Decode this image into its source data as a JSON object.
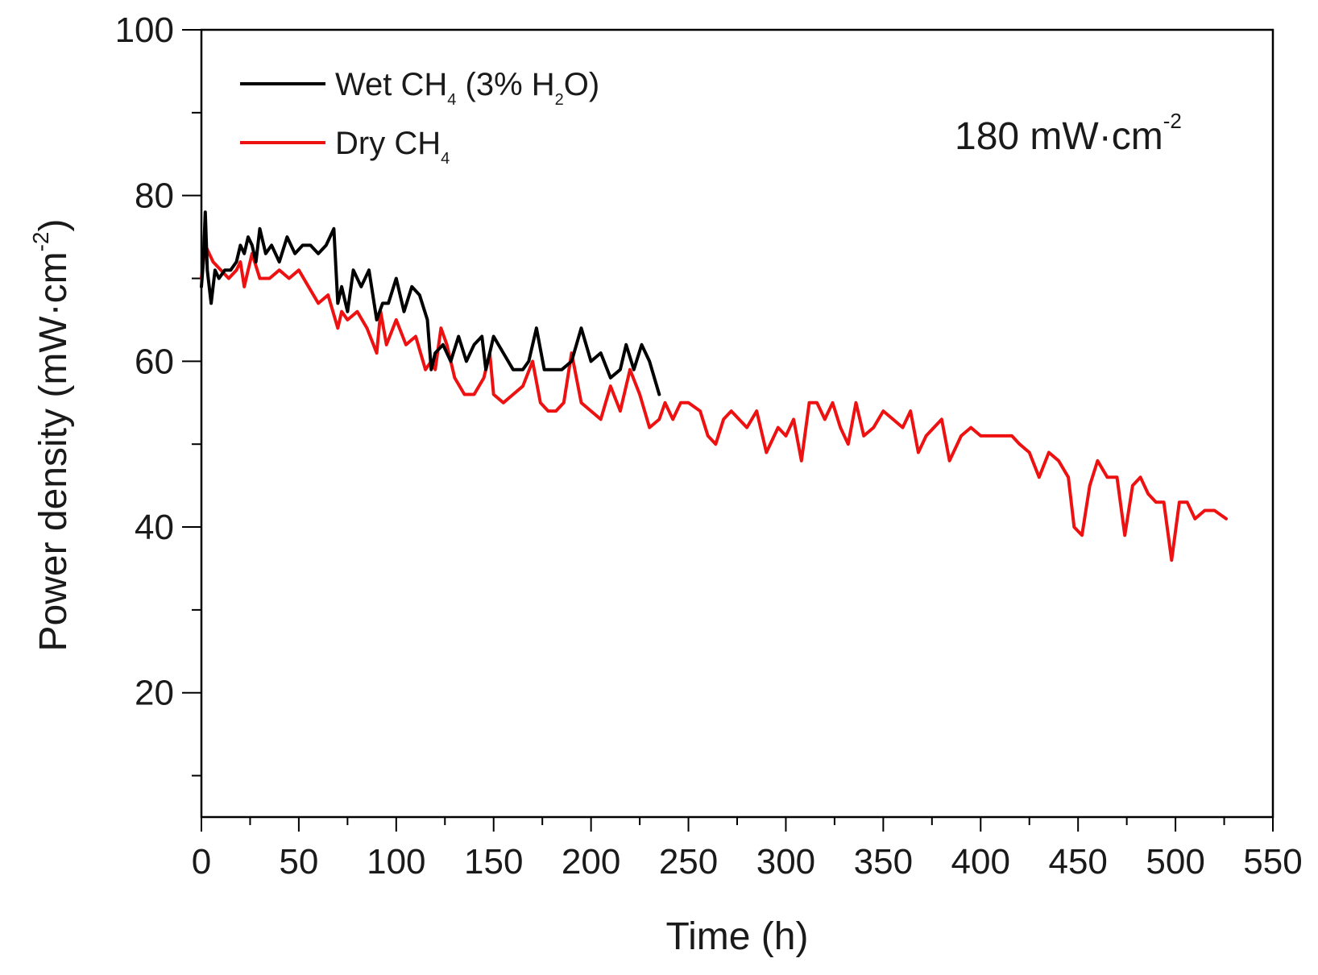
{
  "chart_data": {
    "type": "line",
    "title": "",
    "xlabel": "Time (h)",
    "ylabel": {
      "prefix": "Power density (mW·cm",
      "sup": "-2",
      "suffix": ")"
    },
    "xlim": [
      0,
      550
    ],
    "ylim": [
      5,
      100
    ],
    "x_ticks": [
      "0",
      "50",
      "100",
      "150",
      "200",
      "250",
      "300",
      "350",
      "400",
      "450",
      "500",
      "550"
    ],
    "x_tick_values": [
      0,
      50,
      100,
      150,
      200,
      250,
      300,
      350,
      400,
      450,
      500,
      550
    ],
    "x_minor_step": 25,
    "y_ticks": [
      "20",
      "40",
      "60",
      "80",
      "100"
    ],
    "y_tick_values": [
      20,
      40,
      60,
      80,
      100
    ],
    "y_minor_step": 10,
    "grid": false,
    "legend_position": "top-left",
    "annotation": {
      "text": "180 mW·cm",
      "sup": "-2"
    },
    "series": [
      {
        "name": "Wet CH4 (3% H2O)",
        "legend": {
          "prefix": "Wet CH",
          "sub1": "4",
          "mid": " (3% H",
          "sub2": "2",
          "suffix": "O)"
        },
        "color": "#000000",
        "x": [
          0,
          1,
          2,
          3,
          5,
          7,
          9,
          12,
          15,
          18,
          20,
          22,
          24,
          26,
          28,
          30,
          33,
          36,
          40,
          44,
          48,
          52,
          56,
          60,
          64,
          68,
          70,
          72,
          75,
          78,
          82,
          86,
          90,
          93,
          96,
          100,
          104,
          108,
          112,
          116,
          118,
          120,
          124,
          128,
          132,
          136,
          140,
          144,
          146,
          150,
          155,
          160,
          165,
          168,
          172,
          176,
          180,
          185,
          190,
          195,
          200,
          205,
          210,
          215,
          218,
          222,
          226,
          230,
          235
        ],
        "values": [
          69,
          72,
          78,
          71,
          67,
          71,
          70,
          71,
          71,
          72,
          74,
          73,
          75,
          74,
          72,
          76,
          73,
          74,
          72,
          75,
          73,
          74,
          74,
          73,
          74,
          76,
          67,
          69,
          66,
          71,
          69,
          71,
          65,
          67,
          67,
          70,
          66,
          69,
          68,
          65,
          59,
          61,
          62,
          60,
          63,
          60,
          62,
          63,
          59,
          63,
          61,
          59,
          59,
          60,
          64,
          59,
          59,
          59,
          60,
          64,
          60,
          61,
          58,
          59,
          62,
          59,
          62,
          60,
          56
        ]
      },
      {
        "name": "Dry CH4",
        "legend": {
          "prefix": "Dry CH",
          "sub1": "4",
          "mid": "",
          "sub2": "",
          "suffix": ""
        },
        "color": "#ee1111",
        "x": [
          0,
          2,
          4,
          6,
          10,
          14,
          18,
          20,
          22,
          24,
          26,
          30,
          35,
          40,
          45,
          50,
          55,
          60,
          65,
          70,
          72,
          75,
          80,
          85,
          90,
          92,
          95,
          100,
          105,
          110,
          115,
          118,
          120,
          123,
          126,
          130,
          135,
          140,
          145,
          148,
          150,
          155,
          160,
          165,
          170,
          174,
          178,
          182,
          186,
          190,
          195,
          200,
          205,
          210,
          215,
          220,
          225,
          230,
          235,
          238,
          242,
          246,
          250,
          256,
          260,
          264,
          268,
          272,
          276,
          280,
          285,
          290,
          296,
          300,
          304,
          308,
          312,
          316,
          320,
          324,
          328,
          332,
          336,
          340,
          345,
          350,
          355,
          360,
          364,
          368,
          372,
          376,
          380,
          384,
          390,
          395,
          400,
          405,
          410,
          416,
          420,
          425,
          430,
          435,
          440,
          445,
          448,
          452,
          456,
          460,
          465,
          470,
          474,
          478,
          482,
          486,
          490,
          494,
          498,
          502,
          506,
          510,
          515,
          520,
          526
        ],
        "values": [
          70,
          74,
          73,
          72,
          71,
          70,
          71,
          72,
          69,
          71,
          73,
          70,
          70,
          71,
          70,
          71,
          69,
          67,
          68,
          64,
          66,
          65,
          66,
          64,
          61,
          66,
          62,
          65,
          62,
          63,
          59,
          60,
          59,
          64,
          62,
          58,
          56,
          56,
          58,
          61,
          56,
          55,
          56,
          57,
          60,
          55,
          54,
          54,
          55,
          61,
          55,
          54,
          53,
          57,
          54,
          59,
          56,
          52,
          53,
          55,
          53,
          55,
          55,
          54,
          51,
          50,
          53,
          54,
          53,
          52,
          54,
          49,
          52,
          51,
          53,
          48,
          55,
          55,
          53,
          55,
          52,
          50,
          55,
          51,
          52,
          54,
          53,
          52,
          54,
          49,
          51,
          52,
          53,
          48,
          51,
          52,
          51,
          51,
          51,
          51,
          50,
          49,
          46,
          49,
          48,
          46,
          40,
          39,
          45,
          48,
          46,
          46,
          39,
          45,
          46,
          44,
          43,
          43,
          36,
          43,
          43,
          41,
          42,
          42,
          41
        ]
      }
    ]
  }
}
